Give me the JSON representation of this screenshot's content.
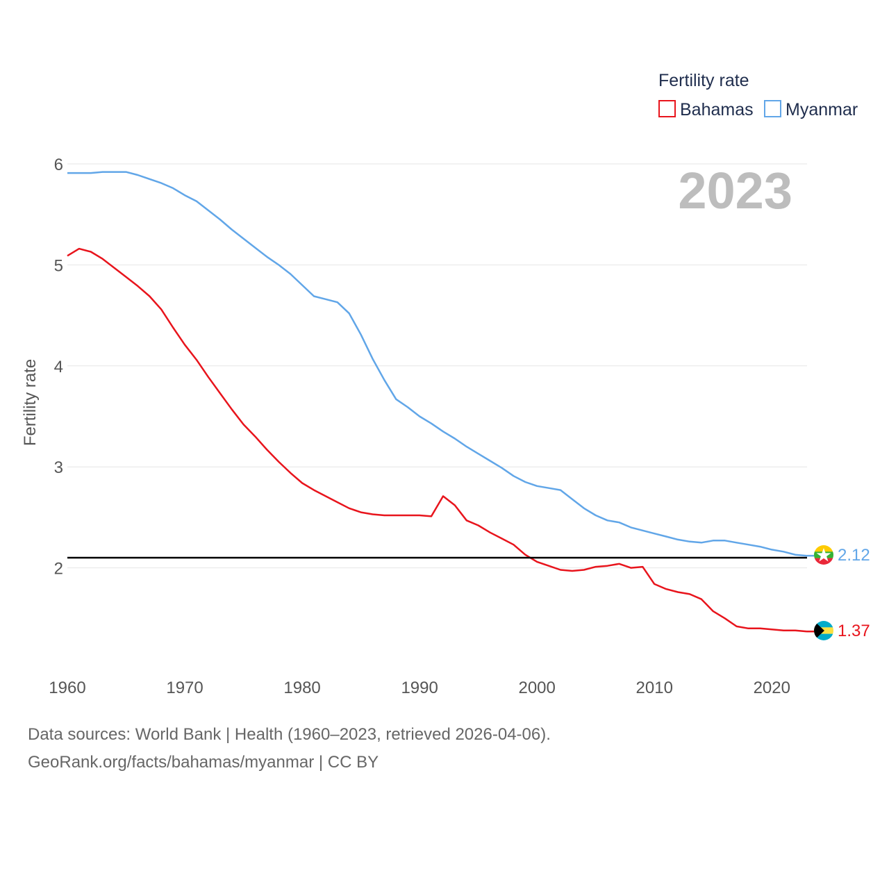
{
  "chart_data": {
    "type": "line",
    "title": "Fertility rate",
    "year_label": "2023",
    "ylabel": "Fertility rate",
    "xlabel": "",
    "xlim": [
      1960,
      2023
    ],
    "ylim": [
      1.0,
      6.0
    ],
    "x_ticks": [
      1960,
      1970,
      1980,
      1990,
      2000,
      2010,
      2020
    ],
    "y_ticks": [
      2,
      3,
      4,
      5,
      6
    ],
    "grid": true,
    "legend_position": "top-right",
    "reference_line": {
      "y": 2.1,
      "color": "#000000"
    },
    "x": [
      1960,
      1961,
      1962,
      1963,
      1964,
      1965,
      1966,
      1967,
      1968,
      1969,
      1970,
      1971,
      1972,
      1973,
      1974,
      1975,
      1976,
      1977,
      1978,
      1979,
      1980,
      1981,
      1982,
      1983,
      1984,
      1985,
      1986,
      1987,
      1988,
      1989,
      1990,
      1991,
      1992,
      1993,
      1994,
      1995,
      1996,
      1997,
      1998,
      1999,
      2000,
      2001,
      2002,
      2003,
      2004,
      2005,
      2006,
      2007,
      2008,
      2009,
      2010,
      2011,
      2012,
      2013,
      2014,
      2015,
      2016,
      2017,
      2018,
      2019,
      2020,
      2021,
      2022,
      2023
    ],
    "series": [
      {
        "name": "Bahamas",
        "color": "#e8141c",
        "end_label": "1.37",
        "values": [
          5.09,
          5.16,
          5.13,
          5.06,
          4.97,
          4.88,
          4.79,
          4.69,
          4.56,
          4.38,
          4.21,
          4.06,
          3.89,
          3.73,
          3.57,
          3.42,
          3.3,
          3.17,
          3.05,
          2.94,
          2.84,
          2.77,
          2.71,
          2.65,
          2.59,
          2.55,
          2.53,
          2.52,
          2.52,
          2.52,
          2.52,
          2.51,
          2.71,
          2.62,
          2.47,
          2.42,
          2.35,
          2.29,
          2.23,
          2.13,
          2.06,
          2.02,
          1.98,
          1.97,
          1.98,
          2.01,
          2.02,
          2.04,
          2.0,
          2.01,
          1.84,
          1.79,
          1.76,
          1.74,
          1.69,
          1.57,
          1.5,
          1.42,
          1.4,
          1.4,
          1.39,
          1.38,
          1.38,
          1.37
        ]
      },
      {
        "name": "Myanmar",
        "color": "#61a6e8",
        "end_label": "2.12",
        "values": [
          5.91,
          5.91,
          5.91,
          5.92,
          5.92,
          5.92,
          5.89,
          5.85,
          5.81,
          5.76,
          5.69,
          5.63,
          5.54,
          5.45,
          5.35,
          5.26,
          5.17,
          5.08,
          5.0,
          4.91,
          4.8,
          4.69,
          4.66,
          4.63,
          4.52,
          4.31,
          4.07,
          3.86,
          3.67,
          3.59,
          3.5,
          3.43,
          3.35,
          3.28,
          3.2,
          3.13,
          3.06,
          2.99,
          2.91,
          2.85,
          2.81,
          2.79,
          2.77,
          2.68,
          2.59,
          2.52,
          2.47,
          2.45,
          2.4,
          2.37,
          2.34,
          2.31,
          2.28,
          2.26,
          2.25,
          2.27,
          2.27,
          2.25,
          2.23,
          2.21,
          2.18,
          2.16,
          2.13,
          2.12
        ]
      }
    ],
    "legend": [
      "Bahamas",
      "Myanmar"
    ]
  },
  "source": {
    "line1": "Data sources: World Bank | Health (1960–2023, retrieved 2026-04-06).",
    "line2": "GeoRank.org/facts/bahamas/myanmar | CC BY"
  },
  "flags": {
    "bahamas": "bahamas-flag-icon",
    "myanmar": "myanmar-flag-icon"
  }
}
